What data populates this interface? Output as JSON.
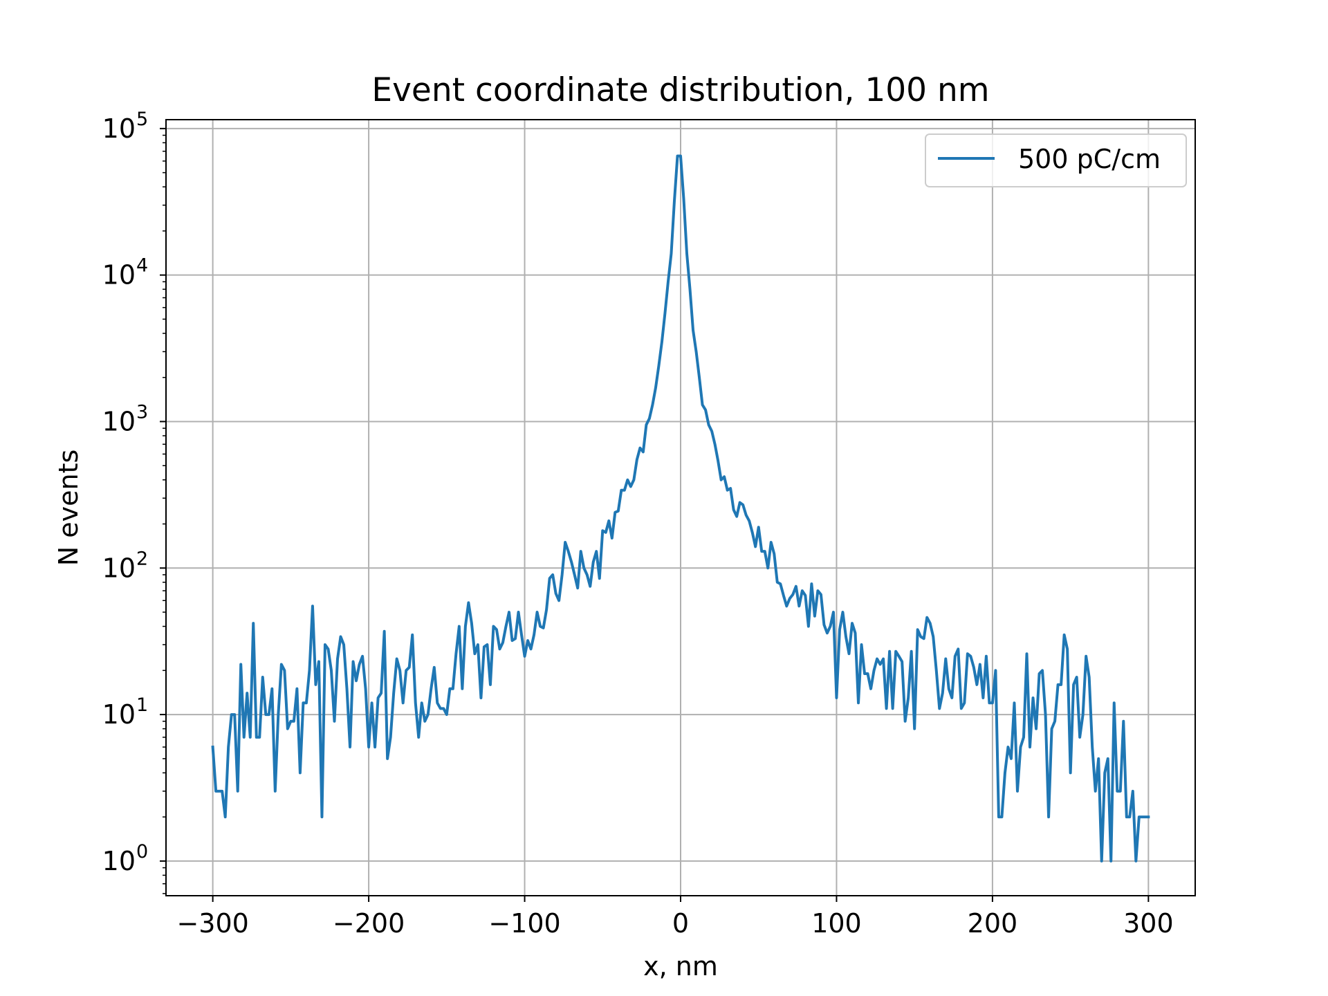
{
  "chart_data": {
    "type": "line",
    "title": "Event coordinate distribution, 100 nm",
    "xlabel": "x, nm",
    "ylabel": "N events",
    "xlim": [
      -330,
      330
    ],
    "ylim": [
      0.58,
      115000
    ],
    "yscale": "log",
    "grid": true,
    "legend_position": "top-right",
    "x_ticks": [
      -300,
      -200,
      -100,
      0,
      100,
      200,
      300
    ],
    "x_tick_labels": [
      "−300",
      "−200",
      "−100",
      "0",
      "100",
      "200",
      "300"
    ],
    "y_ticks": [
      {
        "value": 1,
        "base": "10",
        "exp": "0"
      },
      {
        "value": 10,
        "base": "10",
        "exp": "1"
      },
      {
        "value": 100,
        "base": "10",
        "exp": "2"
      },
      {
        "value": 1000,
        "base": "10",
        "exp": "3"
      },
      {
        "value": 10000,
        "base": "10",
        "exp": "4"
      },
      {
        "value": 100000,
        "base": "10",
        "exp": "5"
      }
    ],
    "series": [
      {
        "name": "500 pC/cm",
        "color": "#1f77b4",
        "points": [
          [
            -300,
            6
          ],
          [
            -298,
            3
          ],
          [
            -294,
            3
          ],
          [
            -292,
            2
          ],
          [
            -290,
            6
          ],
          [
            -288,
            10
          ],
          [
            -286,
            10
          ],
          [
            -284,
            3
          ],
          [
            -282,
            22
          ],
          [
            -280,
            7
          ],
          [
            -278,
            14
          ],
          [
            -276,
            7
          ],
          [
            -274,
            42
          ],
          [
            -272,
            7
          ],
          [
            -270,
            7
          ],
          [
            -268,
            18
          ],
          [
            -266,
            10
          ],
          [
            -264,
            10
          ],
          [
            -262,
            15
          ],
          [
            -260,
            3
          ],
          [
            -258,
            10
          ],
          [
            -256,
            22
          ],
          [
            -254,
            20
          ],
          [
            -252,
            8
          ],
          [
            -250,
            9
          ],
          [
            -248,
            9
          ],
          [
            -246,
            15
          ],
          [
            -244,
            4
          ],
          [
            -242,
            12
          ],
          [
            -240,
            12
          ],
          [
            -238,
            20
          ],
          [
            -236,
            55
          ],
          [
            -234,
            16
          ],
          [
            -232,
            23
          ],
          [
            -230,
            2
          ],
          [
            -228,
            30
          ],
          [
            -226,
            28
          ],
          [
            -224,
            20
          ],
          [
            -222,
            9
          ],
          [
            -220,
            24
          ],
          [
            -218,
            34
          ],
          [
            -216,
            30
          ],
          [
            -214,
            15
          ],
          [
            -212,
            6
          ],
          [
            -210,
            23
          ],
          [
            -208,
            17
          ],
          [
            -206,
            22
          ],
          [
            -204,
            25
          ],
          [
            -202,
            15
          ],
          [
            -200,
            6
          ],
          [
            -198,
            12
          ],
          [
            -196,
            6
          ],
          [
            -194,
            13
          ],
          [
            -192,
            14
          ],
          [
            -190,
            37
          ],
          [
            -188,
            5
          ],
          [
            -186,
            7
          ],
          [
            -184,
            14
          ],
          [
            -182,
            24
          ],
          [
            -180,
            20
          ],
          [
            -178,
            12
          ],
          [
            -176,
            20
          ],
          [
            -174,
            21
          ],
          [
            -172,
            35
          ],
          [
            -170,
            12
          ],
          [
            -168,
            7
          ],
          [
            -166,
            12
          ],
          [
            -164,
            9
          ],
          [
            -162,
            10
          ],
          [
            -160,
            15
          ],
          [
            -158,
            21
          ],
          [
            -156,
            12
          ],
          [
            -154,
            11
          ],
          [
            -152,
            11
          ],
          [
            -150,
            10
          ],
          [
            -148,
            15
          ],
          [
            -146,
            15
          ],
          [
            -144,
            26
          ],
          [
            -142,
            40
          ],
          [
            -140,
            15
          ],
          [
            -138,
            40
          ],
          [
            -136,
            58
          ],
          [
            -134,
            42
          ],
          [
            -132,
            26
          ],
          [
            -130,
            30
          ],
          [
            -128,
            13
          ],
          [
            -126,
            29
          ],
          [
            -124,
            30
          ],
          [
            -122,
            16
          ],
          [
            -120,
            40
          ],
          [
            -118,
            38
          ],
          [
            -116,
            28
          ],
          [
            -114,
            31
          ],
          [
            -112,
            40
          ],
          [
            -110,
            50
          ],
          [
            -108,
            32
          ],
          [
            -106,
            33
          ],
          [
            -104,
            50
          ],
          [
            -102,
            35
          ],
          [
            -100,
            25
          ],
          [
            -98,
            32
          ],
          [
            -96,
            28
          ],
          [
            -94,
            35
          ],
          [
            -92,
            50
          ],
          [
            -90,
            40
          ],
          [
            -88,
            39
          ],
          [
            -86,
            52
          ],
          [
            -84,
            85
          ],
          [
            -82,
            90
          ],
          [
            -80,
            67
          ],
          [
            -78,
            60
          ],
          [
            -76,
            90
          ],
          [
            -74,
            150
          ],
          [
            -72,
            130
          ],
          [
            -70,
            110
          ],
          [
            -68,
            90
          ],
          [
            -66,
            73
          ],
          [
            -64,
            130
          ],
          [
            -62,
            100
          ],
          [
            -60,
            90
          ],
          [
            -58,
            75
          ],
          [
            -56,
            110
          ],
          [
            -54,
            130
          ],
          [
            -52,
            85
          ],
          [
            -50,
            180
          ],
          [
            -48,
            175
          ],
          [
            -46,
            210
          ],
          [
            -44,
            160
          ],
          [
            -42,
            240
          ],
          [
            -40,
            245
          ],
          [
            -38,
            340
          ],
          [
            -36,
            340
          ],
          [
            -34,
            400
          ],
          [
            -32,
            360
          ],
          [
            -30,
            400
          ],
          [
            -28,
            550
          ],
          [
            -26,
            660
          ],
          [
            -24,
            620
          ],
          [
            -22,
            950
          ],
          [
            -20,
            1050
          ],
          [
            -18,
            1300
          ],
          [
            -16,
            1700
          ],
          [
            -14,
            2400
          ],
          [
            -12,
            3500
          ],
          [
            -10,
            5500
          ],
          [
            -8,
            9000
          ],
          [
            -6,
            14000
          ],
          [
            -4,
            32000
          ],
          [
            -2,
            65000
          ],
          [
            0,
            65000
          ],
          [
            2,
            33000
          ],
          [
            4,
            14000
          ],
          [
            6,
            8000
          ],
          [
            8,
            4200
          ],
          [
            10,
            3000
          ],
          [
            12,
            2000
          ],
          [
            14,
            1300
          ],
          [
            16,
            1200
          ],
          [
            18,
            950
          ],
          [
            20,
            860
          ],
          [
            22,
            700
          ],
          [
            24,
            540
          ],
          [
            26,
            400
          ],
          [
            28,
            420
          ],
          [
            30,
            340
          ],
          [
            32,
            350
          ],
          [
            34,
            250
          ],
          [
            36,
            225
          ],
          [
            38,
            280
          ],
          [
            40,
            270
          ],
          [
            42,
            230
          ],
          [
            44,
            210
          ],
          [
            46,
            175
          ],
          [
            48,
            140
          ],
          [
            50,
            190
          ],
          [
            52,
            130
          ],
          [
            54,
            130
          ],
          [
            56,
            100
          ],
          [
            58,
            150
          ],
          [
            60,
            125
          ],
          [
            62,
            80
          ],
          [
            64,
            78
          ],
          [
            66,
            65
          ],
          [
            68,
            55
          ],
          [
            70,
            62
          ],
          [
            72,
            66
          ],
          [
            74,
            75
          ],
          [
            76,
            55
          ],
          [
            78,
            70
          ],
          [
            80,
            65
          ],
          [
            82,
            40
          ],
          [
            84,
            78
          ],
          [
            86,
            47
          ],
          [
            88,
            70
          ],
          [
            90,
            66
          ],
          [
            92,
            41
          ],
          [
            94,
            36
          ],
          [
            96,
            40
          ],
          [
            98,
            50
          ],
          [
            100,
            13
          ],
          [
            102,
            38
          ],
          [
            104,
            50
          ],
          [
            106,
            34
          ],
          [
            108,
            26
          ],
          [
            110,
            42
          ],
          [
            112,
            36
          ],
          [
            114,
            12
          ],
          [
            116,
            30
          ],
          [
            118,
            19
          ],
          [
            120,
            19
          ],
          [
            122,
            15
          ],
          [
            124,
            20
          ],
          [
            126,
            24
          ],
          [
            128,
            22
          ],
          [
            130,
            24
          ],
          [
            132,
            11
          ],
          [
            134,
            27
          ],
          [
            136,
            11
          ],
          [
            138,
            27
          ],
          [
            140,
            25
          ],
          [
            142,
            23
          ],
          [
            144,
            9
          ],
          [
            146,
            13
          ],
          [
            148,
            27
          ],
          [
            150,
            8
          ],
          [
            152,
            38
          ],
          [
            154,
            34
          ],
          [
            156,
            33
          ],
          [
            158,
            46
          ],
          [
            160,
            42
          ],
          [
            162,
            34
          ],
          [
            164,
            20
          ],
          [
            166,
            11
          ],
          [
            168,
            14
          ],
          [
            170,
            24
          ],
          [
            172,
            15
          ],
          [
            174,
            13
          ],
          [
            176,
            25
          ],
          [
            178,
            28
          ],
          [
            180,
            11
          ],
          [
            182,
            12
          ],
          [
            184,
            26
          ],
          [
            186,
            25
          ],
          [
            188,
            21
          ],
          [
            190,
            16
          ],
          [
            192,
            22
          ],
          [
            194,
            13
          ],
          [
            196,
            25
          ],
          [
            198,
            12
          ],
          [
            200,
            12
          ],
          [
            202,
            20
          ],
          [
            204,
            2
          ],
          [
            206,
            2
          ],
          [
            208,
            4
          ],
          [
            210,
            6
          ],
          [
            212,
            5
          ],
          [
            214,
            12
          ],
          [
            216,
            3
          ],
          [
            218,
            6
          ],
          [
            220,
            7
          ],
          [
            222,
            26
          ],
          [
            224,
            6
          ],
          [
            226,
            13
          ],
          [
            228,
            8
          ],
          [
            230,
            19
          ],
          [
            232,
            20
          ],
          [
            234,
            10
          ],
          [
            236,
            2
          ],
          [
            238,
            8
          ],
          [
            240,
            9
          ],
          [
            242,
            16
          ],
          [
            244,
            16
          ],
          [
            246,
            35
          ],
          [
            248,
            28
          ],
          [
            250,
            4
          ],
          [
            252,
            16
          ],
          [
            254,
            18
          ],
          [
            256,
            7
          ],
          [
            258,
            10
          ],
          [
            260,
            25
          ],
          [
            262,
            18
          ],
          [
            264,
            6
          ],
          [
            266,
            3
          ],
          [
            268,
            5
          ],
          [
            270,
            1
          ],
          [
            272,
            4
          ],
          [
            274,
            5
          ],
          [
            276,
            1
          ],
          [
            278,
            12
          ],
          [
            280,
            3
          ],
          [
            282,
            3
          ],
          [
            284,
            9
          ],
          [
            286,
            2
          ],
          [
            288,
            2
          ],
          [
            290,
            3
          ],
          [
            292,
            1
          ],
          [
            294,
            2
          ],
          [
            296,
            2
          ],
          [
            298,
            2
          ],
          [
            300,
            2
          ]
        ]
      }
    ]
  }
}
